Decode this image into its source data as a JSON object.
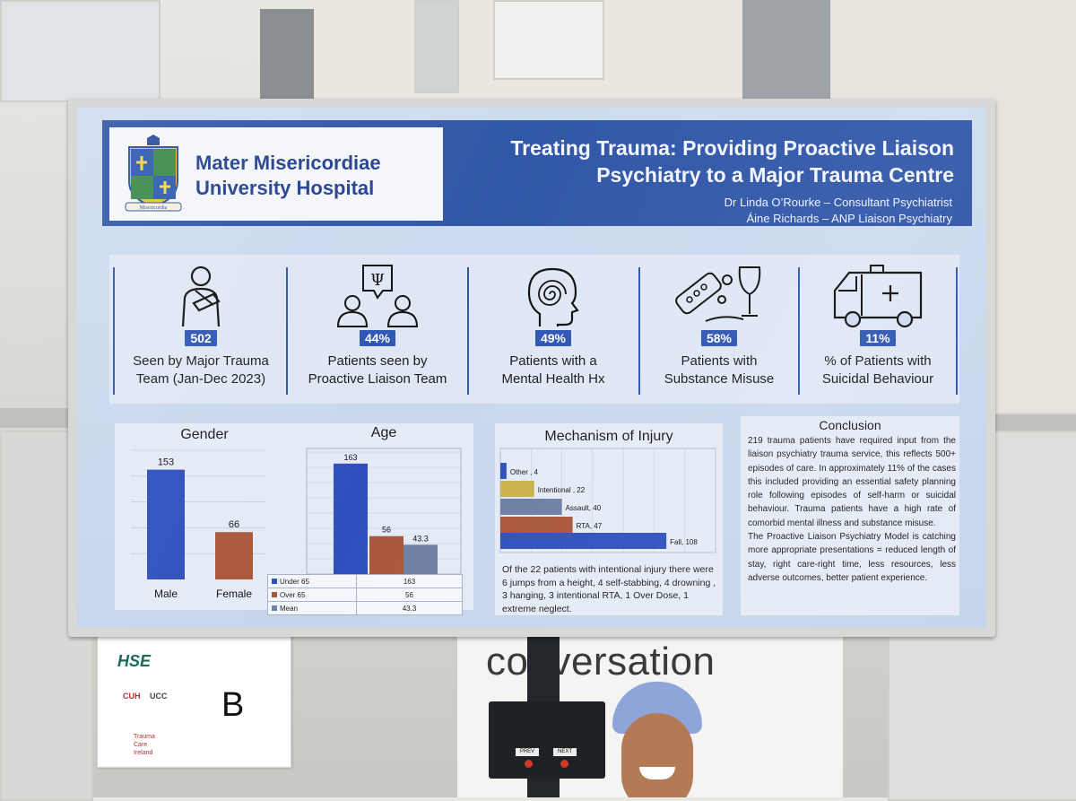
{
  "poster": {
    "hospital_name_line1": "Mater Misericordiae",
    "hospital_name_line2": "University Hospital",
    "crest_motto": "Misericordia",
    "title_line1": "Treating Trauma: Providing Proactive Liaison",
    "title_line2": "Psychiatry to a Major Trauma Centre",
    "author1": "Dr Linda O’Rourke – Consultant Psychiatrist",
    "author2": "Áine Richards – ANP Liaison Psychiatry",
    "colors": {
      "header_blue": "#3157a8",
      "badge_blue": "#2e56b3",
      "bar_blue": "#2f4fbd",
      "bar_brown": "#a8573a",
      "bar_slate": "#6d7fa4",
      "bar_gold": "#c9b14c"
    }
  },
  "stats": [
    {
      "icon": "injured-person-icon",
      "value": "502",
      "label_line1": "Seen by Major Trauma",
      "label_line2": "Team (Jan-Dec 2023)"
    },
    {
      "icon": "psychology-team-icon",
      "value": "44%",
      "label_line1": "Patients seen by",
      "label_line2": "Proactive Liaison Team"
    },
    {
      "icon": "mental-health-head-icon",
      "value": "49%",
      "label_line1": "Patients with a",
      "label_line2": "Mental Health Hx"
    },
    {
      "icon": "substance-icon",
      "value": "58%",
      "label_line1": "Patients with",
      "label_line2": "Substance Misuse"
    },
    {
      "icon": "ambulance-icon",
      "value": "11%",
      "label_line1": "% of Patients with",
      "label_line2": "Suicidal Behaviour"
    }
  ],
  "chart_data": [
    {
      "type": "bar",
      "title": "Gender",
      "categories": [
        "Male",
        "Female"
      ],
      "values": [
        153,
        66
      ],
      "ylim": [
        0,
        180
      ]
    },
    {
      "type": "bar",
      "title": "Age",
      "series": [
        {
          "name": "Under 65",
          "values": [
            163
          ]
        },
        {
          "name": "Over 65",
          "values": [
            56
          ]
        },
        {
          "name": "Mean",
          "values": [
            43.3
          ]
        }
      ],
      "ylim": [
        0,
        180
      ]
    },
    {
      "type": "bar",
      "orientation": "horizontal",
      "title": "Mechanism of Injury",
      "categories": [
        "Other",
        "Intentional",
        "Assault",
        "RTA",
        "Fall"
      ],
      "values": [
        4,
        22,
        40,
        47,
        108
      ],
      "xlim": [
        0,
        140
      ]
    }
  ],
  "mechanism_labels": [
    "Other , 4",
    "Intentional , 22",
    "Assault, 40",
    "RTA, 47",
    "Fall, 108"
  ],
  "age_table": [
    {
      "name": "Under 65",
      "value": "163"
    },
    {
      "name": "Over 65",
      "value": "56"
    },
    {
      "name": "Mean",
      "value": "43.3"
    }
  ],
  "mechanism_note": "Of the 22 patients with intentional injury there were 6 jumps from a height, 4 self-stabbing, 4 drowning , 3 hanging, 3 intentional RTA, 1 Over Dose, 1 extreme neglect.",
  "conclusion": {
    "title": "Conclusion",
    "para1": "219 trauma patients have required input from the liaison psychiatry trauma service, this reflects 500+ episodes of care. In approximately 11% of the cases this included providing an essential safety planning role following episodes of self-harm or suicidal behaviour. Trauma patients have a high rate of comorbid mental illness and substance misuse.",
    "para2": "The Proactive Liaison Psychiatry Model is catching more appropriate presentations = reduced length of stay, right care-right time, less resources, less adverse outcomes, better patient experience."
  },
  "sign": {
    "letter": "B",
    "logo_hse": "HSE",
    "logo_cuh": "CUH",
    "logo_ucc": "UCC",
    "logo_tci_line1": "Trauma",
    "logo_tci_line2": "Care",
    "logo_tci_line3": "Ireland"
  },
  "banner": {
    "word": "conversation"
  },
  "stand": {
    "prev": "PREV",
    "next": "NEXT"
  }
}
